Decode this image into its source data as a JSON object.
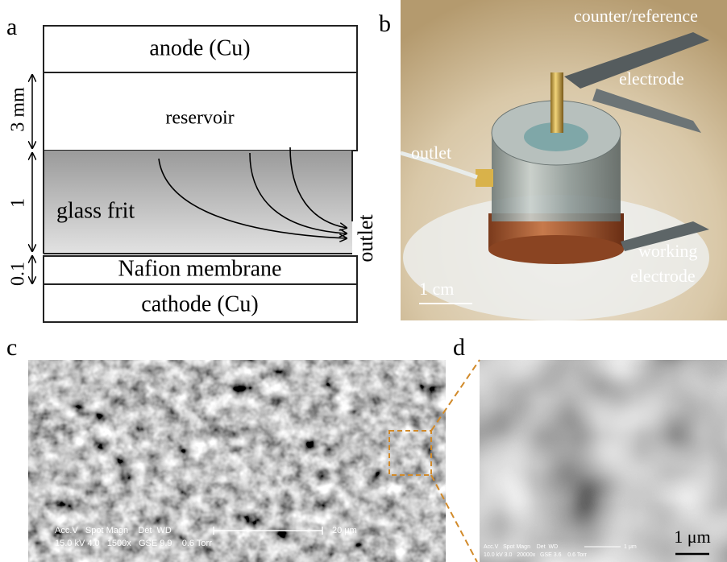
{
  "panel_a": {
    "label": "a",
    "layers": [
      "anode (Cu)",
      "reservoir",
      "glass frit",
      "Nafion membrane",
      "cathode (Cu)"
    ],
    "outlet": "outlet",
    "dimensions": [
      "3 mm",
      "1",
      "0.1"
    ]
  },
  "panel_b": {
    "label": "b",
    "annotations": [
      "counter/reference",
      "electrode",
      "outlet",
      "working",
      "electrode"
    ],
    "scale_bar": "1 cm"
  },
  "panel_c": {
    "label": "c",
    "info_line_1": "Acc.V   Spot Magn    Det  WD",
    "info_line_2": "15.0 kV 4.0   1500x   GSE 9.9    0.6 Torr",
    "scale_bar": "20 μm"
  },
  "panel_d": {
    "label": "d",
    "info_line_1": "Acc.V   Spot Magn    Det  WD",
    "info_line_2": "10.0 kV 3.0   20000x   GSE 3.6    0.6 Torr",
    "micro_scale": "1 μm",
    "scale_bar": "1 μm"
  }
}
